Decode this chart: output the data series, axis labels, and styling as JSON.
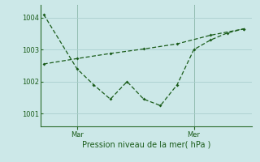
{
  "background_color": "#cce8e8",
  "grid_color": "#aacece",
  "line_color": "#1a5c1a",
  "spine_color": "#2a6b2a",
  "tick_label_color": "#1a5c1a",
  "xlabel": "Pression niveau de la mer( hPa )",
  "ylim": [
    1000.6,
    1004.4
  ],
  "yticks": [
    1001,
    1002,
    1003,
    1004
  ],
  "line1_x": [
    0,
    2,
    3,
    4,
    5,
    6,
    7,
    8,
    9,
    10,
    11,
    12
  ],
  "line1_y": [
    1004.1,
    1002.4,
    1001.9,
    1001.45,
    1002.0,
    1001.45,
    1001.25,
    1001.9,
    1003.0,
    1003.3,
    1003.52,
    1003.65
  ],
  "line2_x": [
    0,
    2,
    4,
    6,
    8,
    10,
    12
  ],
  "line2_y": [
    1002.55,
    1002.72,
    1002.88,
    1003.02,
    1003.18,
    1003.45,
    1003.65
  ],
  "xtick_positions": [
    2,
    9
  ],
  "xtick_labels": [
    "Mar",
    "Mer"
  ],
  "vline_positions": [
    2,
    9
  ],
  "figsize": [
    3.2,
    2.0
  ],
  "dpi": 100
}
